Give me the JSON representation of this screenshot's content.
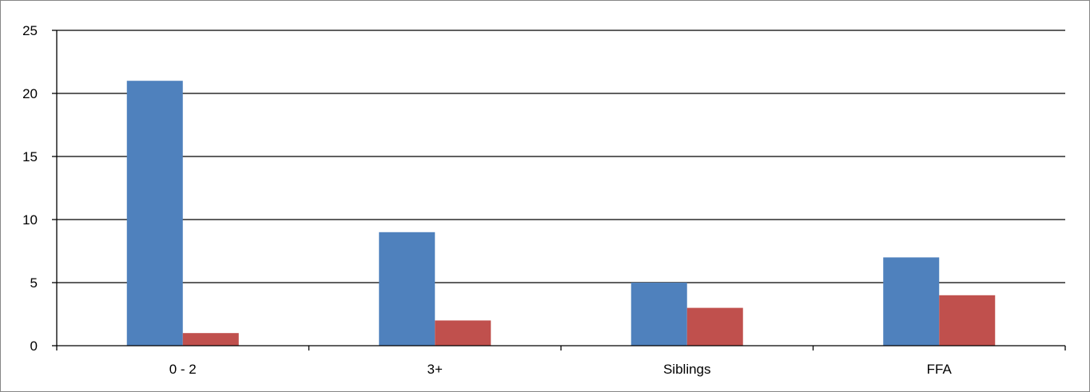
{
  "chart_data": {
    "type": "bar",
    "categories": [
      "0 - 2",
      "3+",
      "Siblings",
      "FFA"
    ],
    "series": [
      {
        "values": [
          21,
          9,
          5,
          7
        ],
        "color": "#4F81BD"
      },
      {
        "values": [
          1,
          2,
          3,
          4
        ],
        "color": "#C0504D"
      }
    ],
    "ylim": [
      0,
      25
    ],
    "yticks": [
      "0",
      "5",
      "10",
      "15",
      "20",
      "25"
    ],
    "grid": true,
    "legend": "none"
  }
}
